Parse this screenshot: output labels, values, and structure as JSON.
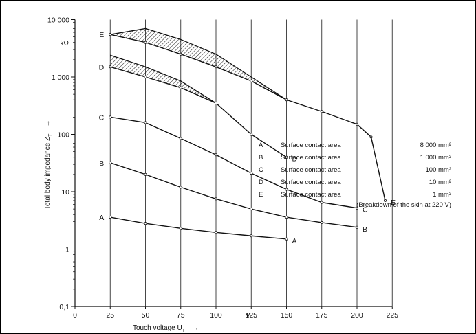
{
  "chart_data": {
    "type": "line",
    "title": "",
    "xlabel": "Touch voltage U",
    "xlabel_sub": "T",
    "xlabel_arrow": "→",
    "ylabel": "Total body impedance Z",
    "ylabel_sub": "T",
    "ylabel_arrow": "→",
    "y_unit": "kΩ",
    "x_unit": "V",
    "y_scale": "log",
    "xlim": [
      0,
      225
    ],
    "ylim": [
      0.1,
      10000
    ],
    "x_ticks": [
      "0",
      "25",
      "50",
      "75",
      "100",
      "125",
      "150",
      "175",
      "200",
      "225"
    ],
    "y_ticks": [
      "0,1",
      "1",
      "10",
      "100",
      "1 000",
      "10 000"
    ],
    "grid": "vertical",
    "series": [
      {
        "name": "A",
        "x": [
          25,
          50,
          75,
          100,
          125,
          150
        ],
        "y": [
          3.6,
          2.8,
          2.3,
          1.95,
          1.7,
          1.5
        ]
      },
      {
        "name": "B",
        "x": [
          25,
          50,
          75,
          100,
          125,
          150,
          175,
          200
        ],
        "y": [
          32,
          20,
          12,
          7.5,
          5,
          3.6,
          2.9,
          2.4
        ]
      },
      {
        "name": "C",
        "x": [
          25,
          50,
          75,
          100,
          125,
          150,
          175,
          200
        ],
        "y": [
          200,
          160,
          85,
          44,
          21,
          11,
          6.5,
          5.2
        ]
      },
      {
        "name": "D",
        "x": [
          25,
          50,
          75,
          100,
          125,
          150
        ],
        "y": [
          1500,
          1000,
          650,
          350,
          100,
          40
        ]
      },
      {
        "name": "E",
        "x": [
          25,
          50,
          75,
          100,
          125,
          150,
          175,
          200,
          210,
          220
        ],
        "y": [
          5500,
          4000,
          2500,
          1500,
          850,
          400,
          250,
          150,
          90,
          7
        ]
      }
    ],
    "bands": [
      {
        "name": "E",
        "x": [
          25,
          50,
          75,
          100,
          125,
          150
        ],
        "upper": [
          5500,
          7000,
          4500,
          2500,
          1000,
          400
        ],
        "lower": [
          5500,
          4000,
          2500,
          1500,
          850,
          400
        ]
      },
      {
        "name": "D",
        "x": [
          25,
          50,
          75,
          100
        ],
        "upper": [
          2400,
          1500,
          850,
          350
        ],
        "lower": [
          1500,
          1000,
          650,
          350
        ]
      }
    ],
    "legend": [
      {
        "letter": "A",
        "text": "Surface contact area",
        "value": "8 000 mm²",
        "note": ""
      },
      {
        "letter": "B",
        "text": "Surface contact area",
        "value": "1 000 mm²",
        "note": ""
      },
      {
        "letter": "C",
        "text": "Surface contact area",
        "value": "100 mm²",
        "note": ""
      },
      {
        "letter": "D",
        "text": "Surface contact area",
        "value": "10 mm²",
        "note": ""
      },
      {
        "letter": "E",
        "text": "Surface contact area",
        "value": "1 mm²",
        "note": "(Breakdown of the skin at 220 V)"
      }
    ],
    "legend_placement": "right"
  }
}
